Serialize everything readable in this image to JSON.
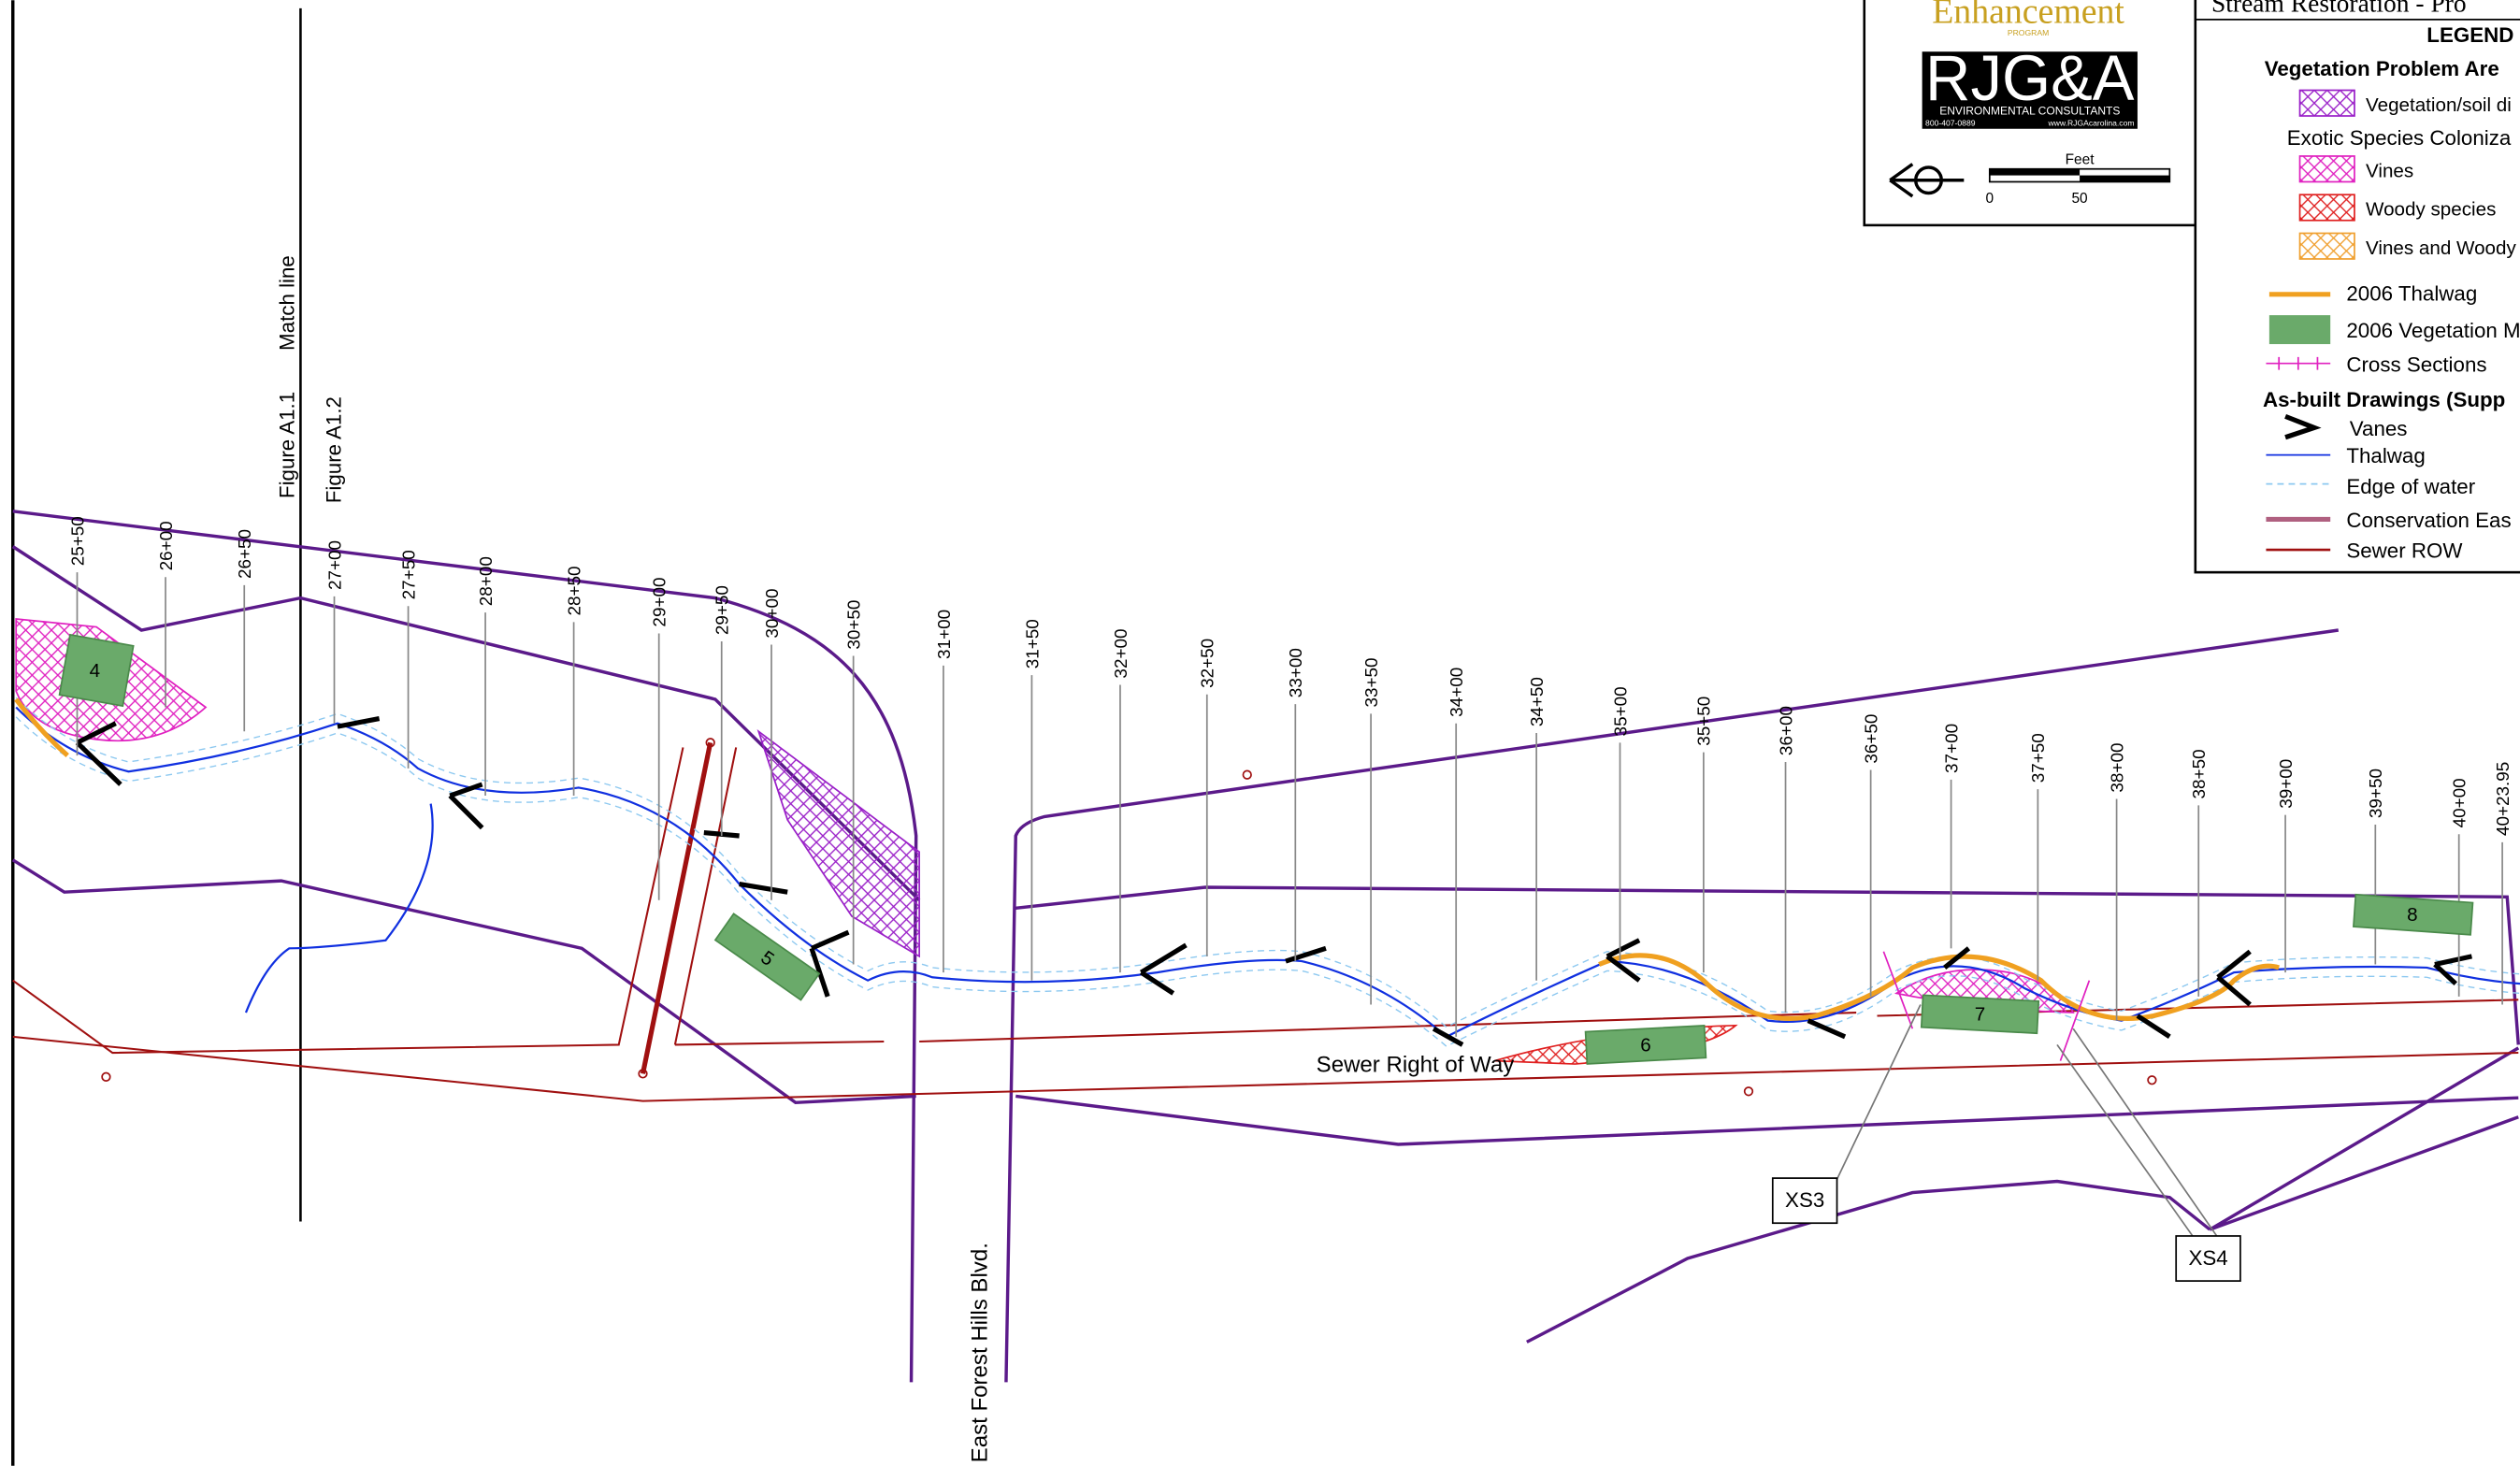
{
  "header": {
    "title": "Stream Restoration - Pro",
    "program": "Enhancement",
    "program_sub": "PROGRAM",
    "firm": "RJG&A",
    "firm_sub": "ENVIRONMENTAL CONSULTANTS",
    "phone": "800-407-0889",
    "web": "www.RJGAcarolina.com",
    "scale_unit": "Feet",
    "scale_start": "0",
    "scale_end": "50"
  },
  "legend": {
    "title": "LEGEND",
    "veg_heading": "Vegetation Problem Are",
    "veg_soil": "Vegetation/soil di",
    "exotic_heading": "Exotic Species Coloniza",
    "vines": "Vines",
    "woody": "Woody species",
    "vines_woody": "Vines and Woody",
    "thalwag_2006": "2006 Thalwag",
    "veg_2006": "2006 Vegetation M",
    "cross_sections": "Cross Sections",
    "asbuilt_heading": "As-built Drawings (Supp",
    "vanes": "Vanes",
    "thalwag": "Thalwag",
    "edge_water": "Edge of water",
    "conservation": "Conservation Eas",
    "sewer_row": "Sewer ROW"
  },
  "map": {
    "stations": [
      "25+50",
      "26+00",
      "26+50",
      "27+00",
      "27+50",
      "28+00",
      "28+50",
      "29+00",
      "29+50",
      "30+00",
      "30+50",
      "31+00",
      "31+50",
      "32+00",
      "32+50",
      "33+00",
      "33+50",
      "34+00",
      "34+50",
      "35+00",
      "35+50",
      "36+00",
      "36+50",
      "37+00",
      "37+50",
      "38+00",
      "38+50",
      "39+00",
      "39+50",
      "40+00",
      "40+23.95"
    ],
    "areas": [
      "4",
      "5",
      "6",
      "7",
      "8"
    ],
    "cross_sections": [
      "XS3",
      "XS4"
    ],
    "figure_left": "Figure A1.1",
    "match_line": "Match line",
    "figure_right": "Figure A1.2",
    "sewer": "Sewer Right of Way",
    "road": "East Forest Hills Blvd."
  }
}
